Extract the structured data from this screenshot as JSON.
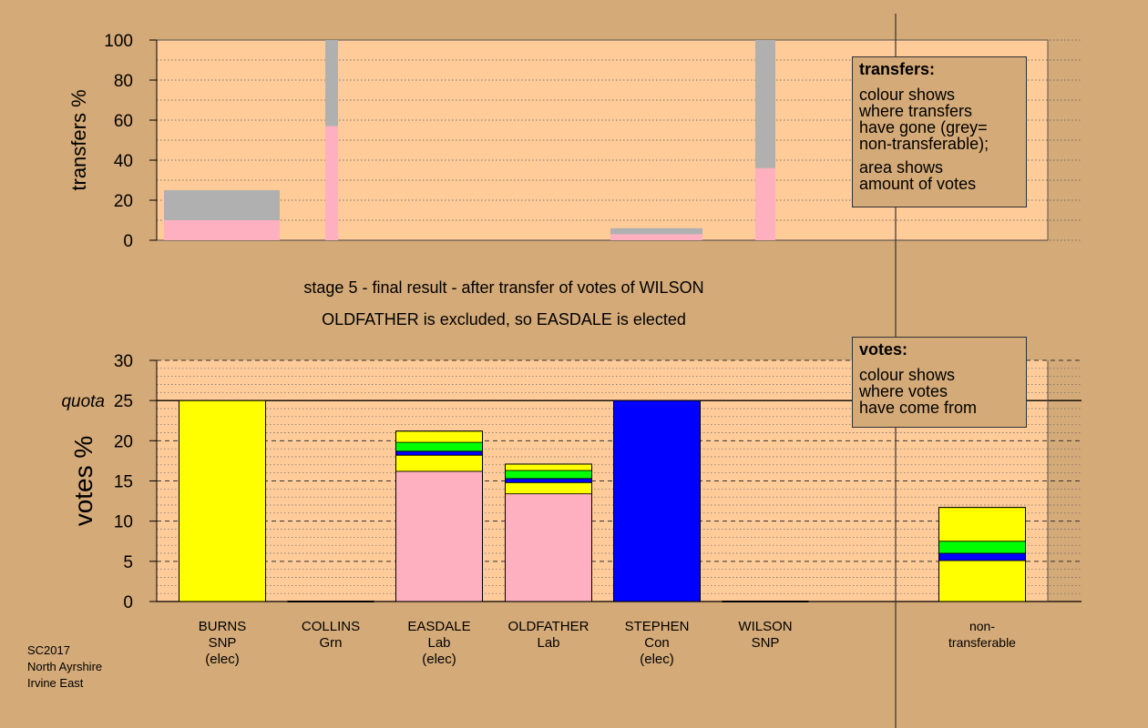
{
  "colors": {
    "background": "#d4aa78",
    "plot_bg": "#ffcc99",
    "snp": "#ffff00",
    "lab": "#ffb0c0",
    "con": "#0000ff",
    "grn": "#00ff00",
    "non_transferable": "#b0b0b0"
  },
  "stage_caption": "stage 5 - final result - after transfer of votes of WILSON",
  "result_caption": "OLDFATHER is excluded, so EASDALE is elected",
  "transfers_note": {
    "title": "transfers:",
    "lines1": [
      "colour shows",
      "where transfers",
      "have gone (grey=",
      "non-transferable);"
    ],
    "lines2": [
      "area shows",
      "amount of votes"
    ]
  },
  "votes_note": {
    "title": "votes:",
    "lines": [
      "colour shows",
      "where votes",
      "have come from"
    ]
  },
  "footer": {
    "line1": "SC2017",
    "line2": "North Ayrshire",
    "line3": "Irvine East"
  },
  "chart_data": [
    {
      "type": "bar",
      "name": "transfers",
      "ylabel": "transfers %",
      "ylim": [
        0,
        100
      ],
      "yticks": [
        0,
        20,
        40,
        60,
        80,
        100
      ],
      "grid": true,
      "bars": [
        {
          "candidate": "BURNS",
          "segments": [
            {
              "party": "lab",
              "value": 10
            },
            {
              "party": "non_transferable",
              "value": 15
            }
          ]
        },
        {
          "candidate": "COLLINS",
          "segments": [
            {
              "party": "lab",
              "value": 57
            },
            {
              "party": "non_transferable",
              "value": 43
            }
          ]
        },
        {
          "candidate": "STEPHEN",
          "segments": [
            {
              "party": "lab",
              "value": 3
            },
            {
              "party": "non_transferable",
              "value": 3
            }
          ]
        },
        {
          "candidate": "WILSON",
          "segments": [
            {
              "party": "lab",
              "value": 36
            },
            {
              "party": "non_transferable",
              "value": 64
            }
          ]
        }
      ]
    },
    {
      "type": "bar",
      "name": "votes",
      "ylabel": "votes %",
      "ylim": [
        0,
        30
      ],
      "yticks": [
        0,
        5,
        10,
        15,
        20,
        25,
        30
      ],
      "quota": 25,
      "quota_label": "quota",
      "grid": true,
      "categories": [
        {
          "name": "BURNS",
          "party": "SNP",
          "status": "(elec)"
        },
        {
          "name": "COLLINS",
          "party": "Grn",
          "status": ""
        },
        {
          "name": "EASDALE",
          "party": "Lab",
          "status": "(elec)"
        },
        {
          "name": "OLDFATHER",
          "party": "Lab",
          "status": ""
        },
        {
          "name": "STEPHEN",
          "party": "Con",
          "status": "(elec)"
        },
        {
          "name": "WILSON",
          "party": "SNP",
          "status": ""
        },
        {
          "name": "non-",
          "party": "transferable",
          "status": ""
        }
      ],
      "stacks": [
        [
          {
            "party": "snp",
            "value": 25
          }
        ],
        [],
        [
          {
            "party": "lab",
            "value": 16.2
          },
          {
            "party": "snp",
            "value": 2.0
          },
          {
            "party": "con",
            "value": 0.5
          },
          {
            "party": "grn",
            "value": 1.1
          },
          {
            "party": "snp",
            "value": 1.4
          }
        ],
        [
          {
            "party": "lab",
            "value": 13.4
          },
          {
            "party": "snp",
            "value": 1.4
          },
          {
            "party": "con",
            "value": 0.5
          },
          {
            "party": "grn",
            "value": 1.0
          },
          {
            "party": "snp",
            "value": 0.8
          }
        ],
        [
          {
            "party": "con",
            "value": 25
          }
        ],
        [],
        [
          {
            "party": "snp",
            "value": 5.1
          },
          {
            "party": "con",
            "value": 0.9
          },
          {
            "party": "grn",
            "value": 1.5
          },
          {
            "party": "snp",
            "value": 4.2
          }
        ]
      ]
    }
  ]
}
